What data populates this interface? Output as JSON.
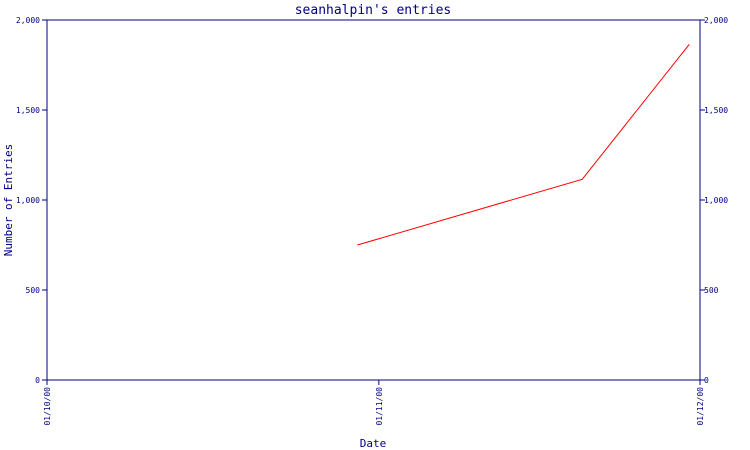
{
  "chart_data": {
    "type": "line",
    "title": "seanhalpin's entries",
    "xlabel": "Date",
    "ylabel": "Number of Entries",
    "x_ticks": [
      "01/10/00",
      "01/11/00",
      "01/12/00"
    ],
    "x_range": [
      "2000-10-01",
      "2000-12-01"
    ],
    "y_ticks": [
      "0",
      "500",
      "1,000",
      "1,500",
      "2,000"
    ],
    "ylim": [
      0,
      2000
    ],
    "grid": false,
    "series": [
      {
        "x": [
          "2000-10-30",
          "2000-11-20",
          "2000-11-30"
        ],
        "values": [
          750,
          1115,
          1865
        ]
      }
    ]
  },
  "colors": {
    "axis": "#000080",
    "text": "#000080",
    "series": "#ff0000"
  }
}
